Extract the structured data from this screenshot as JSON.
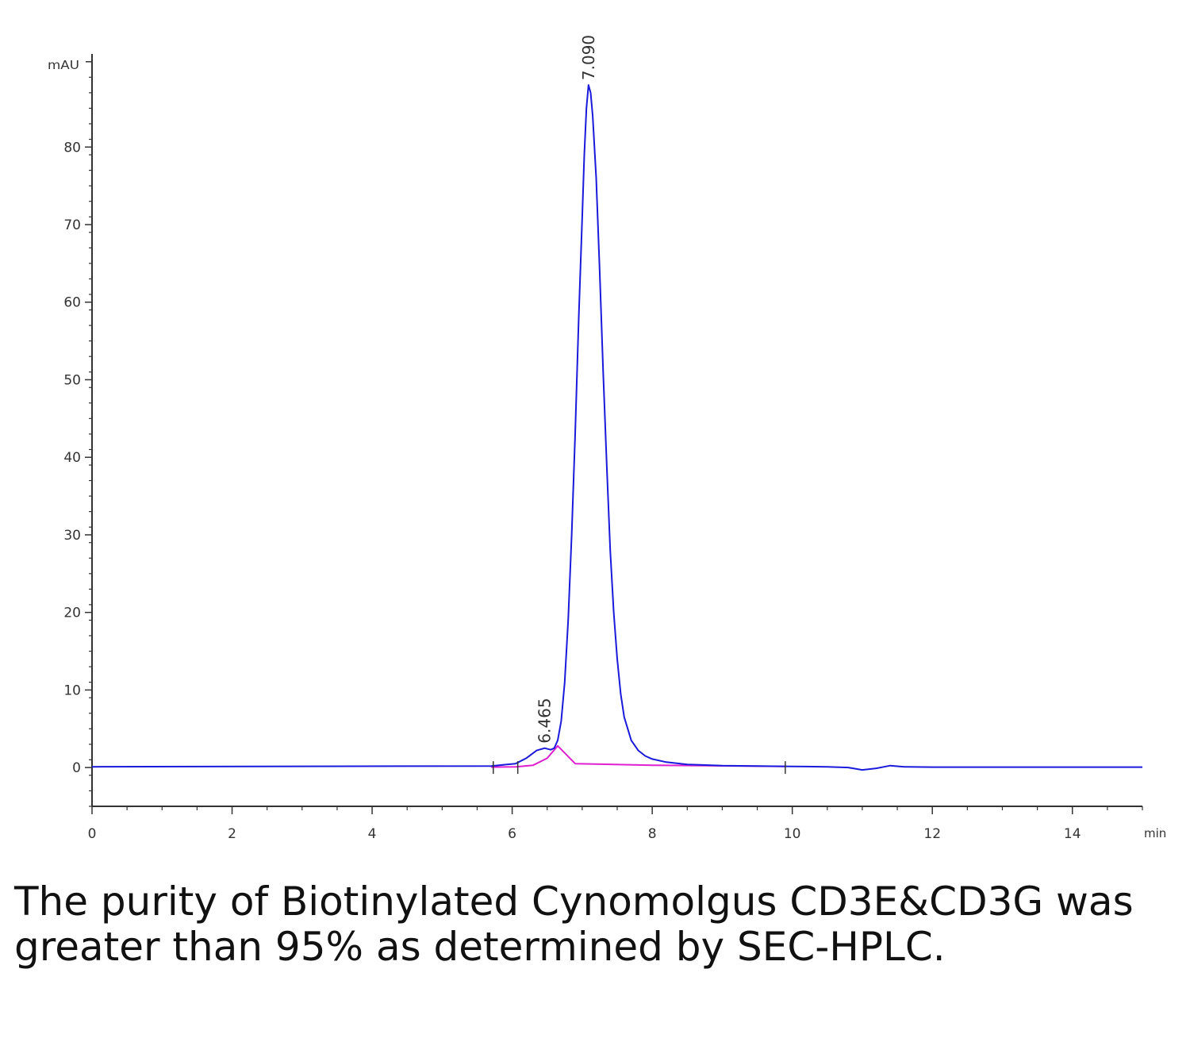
{
  "chart_data": {
    "type": "line",
    "ylabel": "mAU",
    "xlabel": "min",
    "xlim": [
      0,
      15
    ],
    "ylim": [
      -5,
      92
    ],
    "x_ticks": [
      0,
      2,
      4,
      6,
      8,
      10,
      12,
      14
    ],
    "y_ticks": [
      0,
      10,
      20,
      30,
      40,
      50,
      60,
      70,
      80
    ],
    "series": [
      {
        "color": "#1a1adc",
        "x": [
          0,
          5.7,
          6.05,
          6.2,
          6.35,
          6.465,
          6.55,
          6.6,
          6.65,
          6.7,
          6.75,
          6.8,
          6.85,
          6.9,
          6.95,
          7.0,
          7.03,
          7.06,
          7.09,
          7.12,
          7.15,
          7.2,
          7.25,
          7.3,
          7.35,
          7.4,
          7.45,
          7.5,
          7.55,
          7.6,
          7.7,
          7.8,
          7.9,
          8.0,
          8.2,
          8.5,
          9.0,
          9.5,
          10.0,
          10.5,
          10.8,
          11.0,
          11.2,
          11.4,
          11.6,
          12.0,
          15.0
        ],
        "y": [
          0.1,
          0.2,
          0.5,
          1.2,
          2.2,
          2.5,
          2.3,
          2.5,
          3.5,
          6.0,
          11.0,
          19.0,
          30.0,
          43.0,
          58.0,
          71.0,
          79.0,
          85.0,
          88.0,
          87.0,
          84.0,
          76.0,
          64.0,
          51.0,
          39.0,
          28.0,
          20.0,
          14.0,
          9.5,
          6.5,
          3.5,
          2.2,
          1.5,
          1.1,
          0.7,
          0.4,
          0.25,
          0.2,
          0.15,
          0.1,
          0.0,
          -0.3,
          -0.1,
          0.25,
          0.1,
          0.05,
          0.05
        ]
      },
      {
        "color": "#e020d0",
        "x": [
          5.7,
          6.05,
          6.3,
          6.5,
          6.65,
          6.9,
          8.0,
          9.9
        ],
        "y": [
          0.05,
          0.1,
          0.3,
          1.2,
          2.8,
          0.5,
          0.3,
          0.15
        ]
      }
    ],
    "peaks": [
      {
        "label": "7.090",
        "x": 7.09,
        "y": 88.0
      },
      {
        "label": "6.465",
        "x": 6.465,
        "y": 2.5
      }
    ],
    "integration_marks": [
      5.73,
      6.08,
      9.9
    ],
    "grid": false,
    "legend": "none"
  },
  "caption": "The purity of Biotinylated Cynomolgus CD3E&CD3G was greater than 95% as determined by SEC-HPLC."
}
